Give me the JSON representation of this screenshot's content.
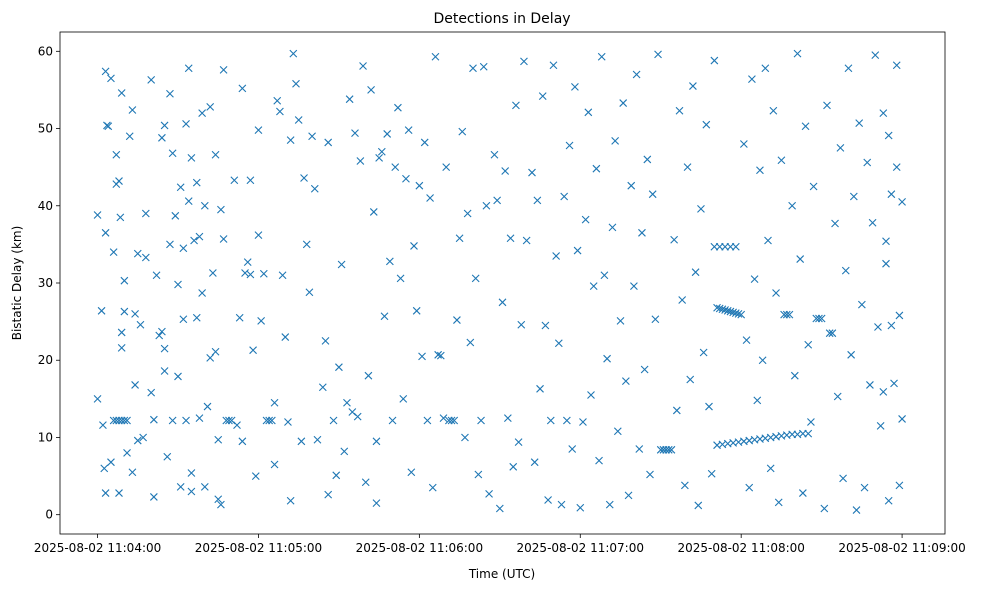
{
  "chart_data": {
    "type": "scatter",
    "title": "Detections in Delay",
    "xlabel": "Time (UTC)",
    "ylabel": "Bistatic Delay (km)",
    "x_origin": "2025-08-02 11:04:00",
    "x_units": "seconds since x_origin",
    "xlim": [
      -14,
      316
    ],
    "ylim": [
      -2.5,
      62.5
    ],
    "x_ticks": [
      0,
      60,
      120,
      180,
      240,
      300
    ],
    "x_tick_labels": [
      "2025-08-02 11:04:00",
      "2025-08-02 11:05:00",
      "2025-08-02 11:06:00",
      "2025-08-02 11:07:00",
      "2025-08-02 11:08:00",
      "2025-08-02 11:09:00"
    ],
    "y_ticks": [
      0,
      10,
      20,
      30,
      40,
      50,
      60
    ],
    "y_tick_labels": [
      "0",
      "10",
      "20",
      "30",
      "40",
      "50",
      "60"
    ],
    "marker": "x",
    "color": "#1f77b4",
    "grid": false,
    "points": [
      [
        0,
        15
      ],
      [
        0,
        38.8
      ],
      [
        1.5,
        26.4
      ],
      [
        2,
        11.6
      ],
      [
        2.5,
        6
      ],
      [
        3,
        36.5
      ],
      [
        3,
        2.8
      ],
      [
        3,
        57.4
      ],
      [
        3.5,
        50.4
      ],
      [
        4,
        50.3
      ],
      [
        5,
        56.5
      ],
      [
        5,
        6.8
      ],
      [
        6,
        12.2
      ],
      [
        7,
        12.2
      ],
      [
        8,
        12.2
      ],
      [
        9,
        12.2
      ],
      [
        10,
        12.2
      ],
      [
        11,
        12.2
      ],
      [
        6,
        34
      ],
      [
        7,
        46.6
      ],
      [
        7,
        42.8
      ],
      [
        8,
        43.2
      ],
      [
        8,
        2.8
      ],
      [
        8.5,
        38.5
      ],
      [
        9,
        54.6
      ],
      [
        9,
        21.6
      ],
      [
        9,
        23.6
      ],
      [
        10,
        30.3
      ],
      [
        10,
        26.3
      ],
      [
        11,
        8
      ],
      [
        12,
        49
      ],
      [
        13,
        52.4
      ],
      [
        13,
        5.5
      ],
      [
        14,
        16.8
      ],
      [
        14,
        26
      ],
      [
        15,
        33.8
      ],
      [
        15,
        9.6
      ],
      [
        16,
        24.6
      ],
      [
        17,
        10
      ],
      [
        18,
        33.3
      ],
      [
        18,
        39
      ],
      [
        20,
        56.3
      ],
      [
        20,
        15.8
      ],
      [
        21,
        12.3
      ],
      [
        21,
        2.3
      ],
      [
        22,
        31
      ],
      [
        23,
        23.2
      ],
      [
        24,
        48.8
      ],
      [
        24,
        23.7
      ],
      [
        25,
        50.4
      ],
      [
        25,
        21.5
      ],
      [
        25,
        18.6
      ],
      [
        26,
        7.5
      ],
      [
        27,
        35
      ],
      [
        27,
        54.5
      ],
      [
        28,
        46.8
      ],
      [
        28,
        12.2
      ],
      [
        29,
        38.7
      ],
      [
        30,
        29.8
      ],
      [
        30,
        17.9
      ],
      [
        31,
        42.4
      ],
      [
        31,
        3.6
      ],
      [
        32,
        34.5
      ],
      [
        32,
        25.3
      ],
      [
        33,
        50.6
      ],
      [
        33,
        12.2
      ],
      [
        34,
        57.8
      ],
      [
        34,
        40.6
      ],
      [
        35,
        46.2
      ],
      [
        35,
        5.4
      ],
      [
        35,
        3
      ],
      [
        36,
        35.5
      ],
      [
        37,
        25.5
      ],
      [
        37,
        43
      ],
      [
        38,
        36
      ],
      [
        38,
        12.5
      ],
      [
        39,
        28.7
      ],
      [
        39,
        52
      ],
      [
        40,
        40
      ],
      [
        40,
        3.6
      ],
      [
        41,
        14
      ],
      [
        42,
        52.8
      ],
      [
        42,
        20.3
      ],
      [
        43,
        31.3
      ],
      [
        44,
        46.6
      ],
      [
        44,
        21.1
      ],
      [
        45,
        9.7
      ],
      [
        45,
        2
      ],
      [
        46,
        39.5
      ],
      [
        46,
        1.3
      ],
      [
        47,
        57.6
      ],
      [
        47,
        35.7
      ],
      [
        48,
        12.2
      ],
      [
        49,
        12.2
      ],
      [
        50,
        12.2
      ],
      [
        51,
        43.3
      ],
      [
        52,
        11.6
      ],
      [
        53,
        25.5
      ],
      [
        54,
        55.2
      ],
      [
        54,
        9.5
      ],
      [
        55,
        31.3
      ],
      [
        56,
        32.7
      ],
      [
        57,
        43.3
      ],
      [
        57,
        31.1
      ],
      [
        58,
        21.3
      ],
      [
        59,
        5
      ],
      [
        60,
        36.2
      ],
      [
        60,
        49.8
      ],
      [
        61,
        25.1
      ],
      [
        62,
        31.2
      ],
      [
        63,
        12.2
      ],
      [
        64,
        12.2
      ],
      [
        65,
        12.2
      ],
      [
        66,
        14.5
      ],
      [
        66,
        6.5
      ],
      [
        67,
        53.6
      ],
      [
        68,
        52.2
      ],
      [
        69,
        31
      ],
      [
        70,
        23
      ],
      [
        71,
        12
      ],
      [
        72,
        1.8
      ],
      [
        72,
        48.5
      ],
      [
        73,
        59.7
      ],
      [
        74,
        55.8
      ],
      [
        75,
        51.1
      ],
      [
        76,
        9.5
      ],
      [
        77,
        43.6
      ],
      [
        78,
        35
      ],
      [
        79,
        28.8
      ],
      [
        80,
        49
      ],
      [
        81,
        42.2
      ],
      [
        82,
        9.7
      ],
      [
        84,
        16.5
      ],
      [
        85,
        22.5
      ],
      [
        86,
        48.2
      ],
      [
        86,
        2.6
      ],
      [
        88,
        12.2
      ],
      [
        89,
        5.1
      ],
      [
        90,
        19.1
      ],
      [
        91,
        32.4
      ],
      [
        92,
        8.2
      ],
      [
        93,
        14.5
      ],
      [
        94,
        53.8
      ],
      [
        95,
        13.3
      ],
      [
        96,
        49.4
      ],
      [
        97,
        12.7
      ],
      [
        98,
        45.8
      ],
      [
        99,
        58.1
      ],
      [
        100,
        4.2
      ],
      [
        101,
        18
      ],
      [
        102,
        55
      ],
      [
        103,
        39.2
      ],
      [
        104,
        9.5
      ],
      [
        104,
        1.5
      ],
      [
        105,
        46.2
      ],
      [
        106,
        47
      ],
      [
        107,
        25.7
      ],
      [
        108,
        49.3
      ],
      [
        109,
        32.8
      ],
      [
        110,
        12.2
      ],
      [
        111,
        45
      ],
      [
        112,
        52.7
      ],
      [
        113,
        30.6
      ],
      [
        114,
        15
      ],
      [
        115,
        43.5
      ],
      [
        116,
        49.8
      ],
      [
        117,
        5.5
      ],
      [
        118,
        34.8
      ],
      [
        119,
        26.4
      ],
      [
        120,
        42.6
      ],
      [
        121,
        20.5
      ],
      [
        122,
        48.2
      ],
      [
        123,
        12.2
      ],
      [
        124,
        41
      ],
      [
        125,
        3.5
      ],
      [
        126,
        59.3
      ],
      [
        127,
        20.7
      ],
      [
        128,
        20.6
      ],
      [
        129,
        12.5
      ],
      [
        130,
        45
      ],
      [
        131,
        12.2
      ],
      [
        132,
        12.2
      ],
      [
        133,
        12.2
      ],
      [
        134,
        25.2
      ],
      [
        135,
        35.8
      ],
      [
        136,
        49.6
      ],
      [
        137,
        10
      ],
      [
        138,
        39
      ],
      [
        139,
        22.3
      ],
      [
        140,
        57.8
      ],
      [
        141,
        30.6
      ],
      [
        142,
        5.2
      ],
      [
        143,
        12.2
      ],
      [
        144,
        58
      ],
      [
        145,
        40
      ],
      [
        146,
        2.7
      ],
      [
        148,
        46.6
      ],
      [
        149,
        40.7
      ],
      [
        150,
        0.8
      ],
      [
        151,
        27.5
      ],
      [
        152,
        44.5
      ],
      [
        153,
        12.5
      ],
      [
        154,
        35.8
      ],
      [
        155,
        6.2
      ],
      [
        156,
        53
      ],
      [
        157,
        9.4
      ],
      [
        158,
        24.6
      ],
      [
        159,
        58.7
      ],
      [
        160,
        35.5
      ],
      [
        162,
        44.3
      ],
      [
        163,
        6.8
      ],
      [
        164,
        40.7
      ],
      [
        165,
        16.3
      ],
      [
        166,
        54.2
      ],
      [
        167,
        24.5
      ],
      [
        168,
        1.9
      ],
      [
        169,
        12.2
      ],
      [
        170,
        58.2
      ],
      [
        171,
        33.5
      ],
      [
        172,
        22.2
      ],
      [
        173,
        1.3
      ],
      [
        174,
        41.2
      ],
      [
        175,
        12.2
      ],
      [
        176,
        47.8
      ],
      [
        177,
        8.5
      ],
      [
        178,
        55.4
      ],
      [
        179,
        34.2
      ],
      [
        180,
        0.9
      ],
      [
        181,
        12
      ],
      [
        182,
        38.2
      ],
      [
        183,
        52.1
      ],
      [
        184,
        15.5
      ],
      [
        185,
        29.6
      ],
      [
        186,
        44.8
      ],
      [
        187,
        7
      ],
      [
        188,
        59.3
      ],
      [
        189,
        31
      ],
      [
        190,
        20.2
      ],
      [
        191,
        1.3
      ],
      [
        192,
        37.2
      ],
      [
        193,
        48.4
      ],
      [
        194,
        10.8
      ],
      [
        195,
        25.1
      ],
      [
        196,
        53.3
      ],
      [
        197,
        17.3
      ],
      [
        198,
        2.5
      ],
      [
        199,
        42.6
      ],
      [
        200,
        29.6
      ],
      [
        201,
        57
      ],
      [
        202,
        8.5
      ],
      [
        203,
        36.5
      ],
      [
        204,
        18.8
      ],
      [
        205,
        46
      ],
      [
        206,
        5.2
      ],
      [
        207,
        41.5
      ],
      [
        208,
        25.3
      ],
      [
        209,
        59.6
      ],
      [
        210,
        8.4
      ],
      [
        211,
        8.4
      ],
      [
        212,
        8.4
      ],
      [
        213,
        8.4
      ],
      [
        214,
        8.4
      ],
      [
        215,
        35.6
      ],
      [
        216,
        13.5
      ],
      [
        217,
        52.3
      ],
      [
        218,
        27.8
      ],
      [
        219,
        3.8
      ],
      [
        220,
        45
      ],
      [
        221,
        17.5
      ],
      [
        222,
        55.5
      ],
      [
        223,
        31.4
      ],
      [
        224,
        1.2
      ],
      [
        225,
        39.6
      ],
      [
        226,
        21
      ],
      [
        227,
        50.5
      ],
      [
        228,
        14
      ],
      [
        229,
        5.3
      ],
      [
        230,
        58.8
      ],
      [
        231,
        26.8
      ],
      [
        232,
        26.7
      ],
      [
        233,
        26.6
      ],
      [
        234,
        26.5
      ],
      [
        235,
        26.4
      ],
      [
        236,
        26.3
      ],
      [
        237,
        26.2
      ],
      [
        238,
        26.1
      ],
      [
        239,
        26
      ],
      [
        240,
        25.9
      ],
      [
        230,
        34.7
      ],
      [
        232,
        34.7
      ],
      [
        234,
        34.7
      ],
      [
        236,
        34.7
      ],
      [
        238,
        34.7
      ],
      [
        231,
        9
      ],
      [
        233,
        9.1
      ],
      [
        235,
        9.2
      ],
      [
        237,
        9.3
      ],
      [
        239,
        9.4
      ],
      [
        241,
        9.5
      ],
      [
        243,
        9.6
      ],
      [
        245,
        9.7
      ],
      [
        247,
        9.8
      ],
      [
        249,
        9.9
      ],
      [
        251,
        10
      ],
      [
        253,
        10.1
      ],
      [
        255,
        10.2
      ],
      [
        257,
        10.3
      ],
      [
        259,
        10.4
      ],
      [
        261,
        10.4
      ],
      [
        263,
        10.5
      ],
      [
        265,
        10.5
      ],
      [
        241,
        48
      ],
      [
        242,
        22.6
      ],
      [
        243,
        3.5
      ],
      [
        244,
        56.4
      ],
      [
        245,
        30.5
      ],
      [
        246,
        14.8
      ],
      [
        247,
        44.6
      ],
      [
        248,
        20
      ],
      [
        249,
        57.8
      ],
      [
        250,
        35.5
      ],
      [
        251,
        6
      ],
      [
        252,
        52.3
      ],
      [
        253,
        28.7
      ],
      [
        254,
        1.6
      ],
      [
        255,
        45.9
      ],
      [
        256,
        25.9
      ],
      [
        257,
        25.9
      ],
      [
        258,
        25.9
      ],
      [
        259,
        40
      ],
      [
        260,
        18
      ],
      [
        261,
        59.7
      ],
      [
        262,
        33.1
      ],
      [
        263,
        2.8
      ],
      [
        264,
        50.3
      ],
      [
        265,
        22
      ],
      [
        266,
        12
      ],
      [
        267,
        42.5
      ],
      [
        268,
        25.4
      ],
      [
        269,
        25.4
      ],
      [
        270,
        25.4
      ],
      [
        271,
        0.8
      ],
      [
        272,
        53
      ],
      [
        273,
        23.5
      ],
      [
        274,
        23.5
      ],
      [
        275,
        37.7
      ],
      [
        276,
        15.3
      ],
      [
        277,
        47.5
      ],
      [
        278,
        4.7
      ],
      [
        279,
        31.6
      ],
      [
        280,
        57.8
      ],
      [
        281,
        20.7
      ],
      [
        282,
        41.2
      ],
      [
        283,
        0.6
      ],
      [
        284,
        50.7
      ],
      [
        285,
        27.2
      ],
      [
        286,
        3.5
      ],
      [
        287,
        45.6
      ],
      [
        288,
        16.8
      ],
      [
        289,
        37.8
      ],
      [
        290,
        59.5
      ],
      [
        291,
        24.3
      ],
      [
        292,
        11.5
      ],
      [
        293,
        52
      ],
      [
        294,
        32.5
      ],
      [
        295,
        1.8
      ],
      [
        296,
        41.5
      ],
      [
        297,
        17
      ],
      [
        298,
        58.2
      ],
      [
        299,
        25.8
      ],
      [
        300,
        40.5
      ],
      [
        300,
        12.4
      ],
      [
        299,
        3.8
      ],
      [
        298,
        45
      ],
      [
        296,
        24.5
      ],
      [
        295,
        49.1
      ],
      [
        294,
        35.4
      ],
      [
        293,
        15.9
      ]
    ]
  }
}
